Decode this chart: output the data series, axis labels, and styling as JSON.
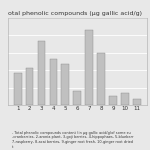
{
  "categories": [
    "1",
    "2",
    "3",
    "4",
    "5",
    "6",
    "7",
    "8",
    "9",
    "10",
    "11"
  ],
  "values": [
    28,
    32,
    55,
    40,
    35,
    12,
    65,
    45,
    8,
    10,
    5
  ],
  "bar_color": "#c0c0c0",
  "bar_edge_color": "#888888",
  "title": "otal phenolic compounds (μg gallic acid/g)",
  "title_fontsize": 4.5,
  "ylim": [
    0,
    75
  ],
  "background_color": "#e8e8e8",
  "plot_bg_color": "#e8e8e8",
  "grid_color": "#ffffff",
  "caption_line1": "- Total phenolic compounds content (in μg gallic acid/g)of some su",
  "caption_line2": "-cranberries, 2-aronia plant, 3-goji berries, 4-hippophaes, 5-blueberr",
  "caption_line3": "7-raspberry, 8-acai berries, 9-ginger root fresh, 10-ginger root dried",
  "caption_line4": "t."
}
